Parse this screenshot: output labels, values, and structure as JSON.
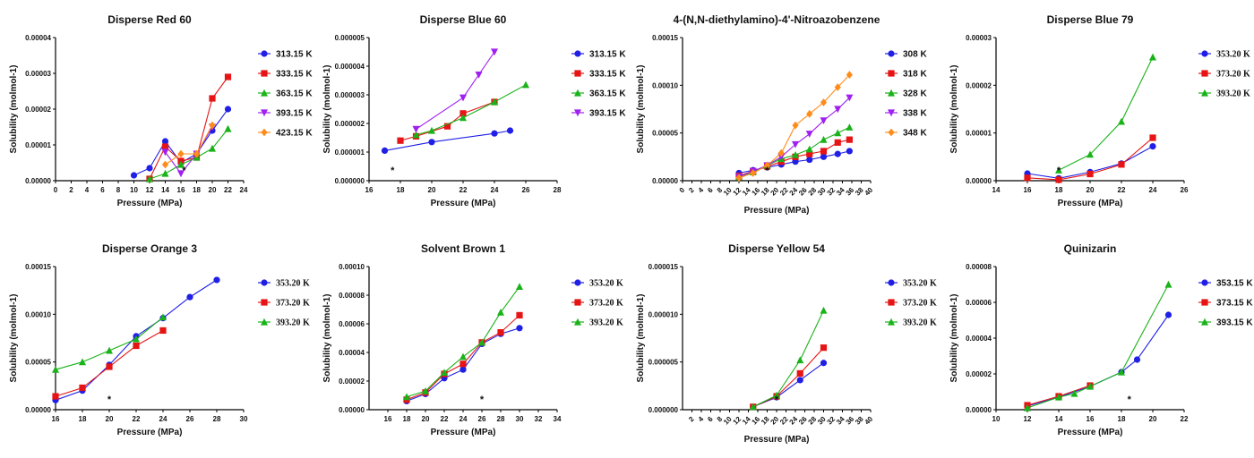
{
  "colors": {
    "blue": "#1f1fe6",
    "red": "#e61414",
    "green": "#19b219",
    "purple": "#a020f0",
    "orange": "#ff8c1a"
  },
  "chart_data": [
    {
      "type": "line",
      "title": "Disperse Red 60",
      "xlabel": "Pressure (MPa)",
      "ylabel": "Solubility (molmol-1)",
      "xlim": [
        0,
        24
      ],
      "ylim": [
        0,
        4e-05
      ],
      "xticks": [
        "0",
        "2",
        "4",
        "6",
        "8",
        "10",
        "12",
        "14",
        "16",
        "18",
        "20",
        "22",
        "24"
      ],
      "yticks": [
        "0.00000",
        "0.00001",
        "0.00002",
        "0.00003",
        "0.00004"
      ],
      "annotation": "*",
      "annotation_x": 16.4,
      "legend_position": "right",
      "series": [
        {
          "name": "313.15 K",
          "color": "blue",
          "marker": "circle",
          "x": [
            10,
            12,
            14,
            16,
            18,
            20,
            22
          ],
          "y": [
            1.5e-06,
            3.5e-06,
            1.1e-05,
            5e-06,
            7.5e-06,
            1.4e-05,
            2e-05
          ]
        },
        {
          "name": "333.15 K",
          "color": "red",
          "marker": "square",
          "x": [
            12,
            14,
            16,
            18,
            20,
            22
          ],
          "y": [
            5e-07,
            9.5e-06,
            5.5e-06,
            6.5e-06,
            2.3e-05,
            2.9e-05
          ]
        },
        {
          "name": "363.15 K",
          "color": "green",
          "marker": "triangle",
          "x": [
            12,
            14,
            16,
            18,
            20,
            22
          ],
          "y": [
            5e-07,
            2e-06,
            4.5e-06,
            6.5e-06,
            9e-06,
            1.45e-05
          ]
        },
        {
          "name": "393.15 K",
          "color": "purple",
          "marker": "triangle-down",
          "x": [
            14,
            16,
            18,
            20
          ],
          "y": [
            8e-06,
            2e-06,
            7.5e-06,
            1.5e-05
          ]
        },
        {
          "name": "423.15 K",
          "color": "orange",
          "marker": "diamond",
          "x": [
            14,
            16,
            18,
            20
          ],
          "y": [
            4.5e-06,
            7.5e-06,
            7.5e-06,
            1.55e-05
          ]
        }
      ]
    },
    {
      "type": "line",
      "title": "Disperse Blue 60",
      "xlabel": "Pressure (MPa)",
      "ylabel": "Solubility (molmol-1)",
      "xlim": [
        16,
        28
      ],
      "ylim": [
        0,
        5e-06
      ],
      "xticks": [
        "16",
        "18",
        "20",
        "22",
        "24",
        "26",
        "28"
      ],
      "yticks": [
        "0.000000",
        "0.000001",
        "0.000002",
        "0.000003",
        "0.000004",
        "0.000005"
      ],
      "annotation": "*",
      "annotation_x": 17.5,
      "legend_position": "right",
      "series": [
        {
          "name": "313.15 K",
          "color": "blue",
          "marker": "circle",
          "x": [
            17,
            20,
            24,
            25
          ],
          "y": [
            1.05e-06,
            1.35e-06,
            1.65e-06,
            1.75e-06
          ]
        },
        {
          "name": "333.15 K",
          "color": "red",
          "marker": "square",
          "x": [
            18,
            19,
            21,
            22,
            24
          ],
          "y": [
            1.4e-06,
            1.55e-06,
            1.9e-06,
            2.35e-06,
            2.75e-06
          ]
        },
        {
          "name": "363.15 K",
          "color": "green",
          "marker": "triangle",
          "x": [
            19,
            20,
            22,
            24,
            26
          ],
          "y": [
            1.6e-06,
            1.75e-06,
            2.2e-06,
            2.75e-06,
            3.35e-06
          ]
        },
        {
          "name": "393.15 K",
          "color": "purple",
          "marker": "triangle-down",
          "x": [
            19,
            22,
            23,
            24
          ],
          "y": [
            1.8e-06,
            2.9e-06,
            3.7e-06,
            4.5e-06
          ]
        }
      ]
    },
    {
      "type": "line",
      "title": "4-(N,N-diethylamino)-4'-Nitroazobenzene",
      "xlabel": "Pressure (MPa)",
      "ylabel": "Solubility (molmol-1)",
      "xlim": [
        0,
        40
      ],
      "ylim": [
        0,
        0.00015
      ],
      "xticks": [
        "0",
        "2",
        "4",
        "6",
        "8",
        "10",
        "12",
        "14",
        "16",
        "18",
        "20",
        "22",
        "24",
        "26",
        "28",
        "30",
        "32",
        "34",
        "36",
        "38",
        "40"
      ],
      "xtick_rotate": true,
      "yticks": [
        "0.00000",
        "0.00005",
        "0.00010",
        "0.00015"
      ],
      "annotation": "*",
      "annotation_x": 18,
      "legend_position": "right",
      "series": [
        {
          "name": "308 K",
          "color": "blue",
          "marker": "circle",
          "x": [
            12,
            15,
            18,
            21,
            24,
            27,
            30,
            33,
            35.5
          ],
          "y": [
            8e-06,
            1.1e-05,
            1.4e-05,
            1.7e-05,
            2e-05,
            2.2e-05,
            2.5e-05,
            2.8e-05,
            3.1e-05
          ]
        },
        {
          "name": "318 K",
          "color": "red",
          "marker": "square",
          "x": [
            12,
            15,
            18,
            21,
            24,
            27,
            30,
            33,
            35.5
          ],
          "y": [
            5e-06,
            1e-05,
            1.5e-05,
            2e-05,
            2.5e-05,
            2.8e-05,
            3.1e-05,
            4e-05,
            4.3e-05
          ]
        },
        {
          "name": "328 K",
          "color": "green",
          "marker": "triangle",
          "x": [
            12,
            15,
            18,
            21,
            24,
            27,
            30,
            33,
            35.5
          ],
          "y": [
            4e-06,
            9e-06,
            1.6e-05,
            2.3e-05,
            2.7e-05,
            3.3e-05,
            4.3e-05,
            5e-05,
            5.6e-05
          ]
        },
        {
          "name": "338 K",
          "color": "purple",
          "marker": "triangle-down",
          "x": [
            12,
            15,
            18,
            21,
            24,
            27,
            30,
            33,
            35.5
          ],
          "y": [
            4e-06,
            1e-05,
            1.6e-05,
            2.5e-05,
            3.8e-05,
            4.9e-05,
            6.3e-05,
            7.5e-05,
            8.7e-05
          ]
        },
        {
          "name": "348 K",
          "color": "orange",
          "marker": "diamond",
          "x": [
            12,
            15,
            18,
            21,
            24,
            27,
            30,
            33,
            35.5
          ],
          "y": [
            3e-06,
            8e-06,
            1.6e-05,
            2.9e-05,
            5.8e-05,
            7e-05,
            8.2e-05,
            9.8e-05,
            0.000111
          ]
        }
      ]
    },
    {
      "type": "line",
      "title": "Disperse Blue 79",
      "xlabel": "Pressure (MPa)",
      "ylabel": "Solubility (molmol-1)",
      "xlim": [
        14,
        26
      ],
      "ylim": [
        0,
        3e-05
      ],
      "xticks": [
        "14",
        "16",
        "18",
        "20",
        "22",
        "24",
        "26"
      ],
      "yticks": [
        "0.00000",
        "0.00001",
        "0.00002",
        "0.00003"
      ],
      "annotation": "*",
      "annotation_x": 18,
      "legend_position": "right",
      "legend_serif": true,
      "series": [
        {
          "name": "353.20 K",
          "color": "blue",
          "marker": "circle",
          "x": [
            16,
            18,
            20,
            22,
            24
          ],
          "y": [
            1.5e-06,
            5e-07,
            1.8e-06,
            3.6e-06,
            7.2e-06
          ]
        },
        {
          "name": "373.20 K",
          "color": "red",
          "marker": "square",
          "x": [
            16,
            18,
            20,
            22,
            24
          ],
          "y": [
            6e-07,
            2e-07,
            1.4e-06,
            3.4e-06,
            9e-06
          ]
        },
        {
          "name": "393.20 K",
          "color": "green",
          "marker": "triangle",
          "x": [
            18,
            20,
            22,
            24
          ],
          "y": [
            2.2e-06,
            5.5e-06,
            1.24e-05,
            2.59e-05
          ]
        }
      ]
    },
    {
      "type": "line",
      "title": "Disperse Orange 3",
      "xlabel": "Pressure (MPa)",
      "ylabel": "Solubility (molmol-1)",
      "xlim": [
        16,
        30
      ],
      "ylim": [
        0,
        0.00015
      ],
      "xticks": [
        "16",
        "18",
        "20",
        "22",
        "24",
        "26",
        "28",
        "30"
      ],
      "yticks": [
        "0.00000",
        "0.00005",
        "0.00010",
        "0.00015"
      ],
      "annotation": "*",
      "annotation_x": 20,
      "legend_position": "right",
      "legend_serif": true,
      "series": [
        {
          "name": "353.20 K",
          "color": "blue",
          "marker": "circle",
          "x": [
            16,
            18,
            20,
            22,
            24,
            26,
            28
          ],
          "y": [
            1e-05,
            2e-05,
            4.7e-05,
            7.7e-05,
            9.6e-05,
            0.000118,
            0.000136
          ]
        },
        {
          "name": "373.20 K",
          "color": "red",
          "marker": "square",
          "x": [
            16,
            18,
            20,
            22,
            24
          ],
          "y": [
            1.4e-05,
            2.3e-05,
            4.5e-05,
            6.7e-05,
            8.3e-05
          ]
        },
        {
          "name": "393.20 K",
          "color": "green",
          "marker": "triangle",
          "x": [
            16,
            18,
            20,
            22,
            24
          ],
          "y": [
            4.2e-05,
            5e-05,
            6.2e-05,
            7.4e-05,
            9.7e-05
          ]
        }
      ]
    },
    {
      "type": "line",
      "title": "Solvent Brown 1",
      "xlabel": "Pressure (MPa)",
      "ylabel": "Solubility (molmol-1)",
      "xlim": [
        14,
        34
      ],
      "ylim": [
        0,
        0.0001
      ],
      "xticks": [
        "16",
        "18",
        "20",
        "22",
        "24",
        "26",
        "28",
        "30",
        "32",
        "34"
      ],
      "yticks": [
        "0.00000",
        "0.00002",
        "0.00004",
        "0.00006",
        "0.00008",
        "0.00010"
      ],
      "annotation": "*",
      "annotation_x": 26,
      "legend_position": "right",
      "legend_serif": true,
      "series": [
        {
          "name": "353.20 K",
          "color": "blue",
          "marker": "circle",
          "x": [
            18,
            20,
            22,
            24,
            26,
            28,
            30
          ],
          "y": [
            6e-06,
            1.1e-05,
            2.2e-05,
            2.8e-05,
            4.6e-05,
            5.3e-05,
            5.7e-05
          ]
        },
        {
          "name": "373.20 K",
          "color": "red",
          "marker": "square",
          "x": [
            18,
            20,
            22,
            24,
            26,
            28,
            30
          ],
          "y": [
            7e-06,
            1.2e-05,
            2.5e-05,
            3.2e-05,
            4.7e-05,
            5.4e-05,
            6.6e-05
          ]
        },
        {
          "name": "393.20 K",
          "color": "green",
          "marker": "triangle",
          "x": [
            18,
            20,
            22,
            24,
            26,
            28,
            30
          ],
          "y": [
            9e-06,
            1.3e-05,
            2.6e-05,
            3.7e-05,
            4.7e-05,
            6.8e-05,
            8.6e-05
          ]
        }
      ]
    },
    {
      "type": "line",
      "title": "Disperse Yellow 54",
      "xlabel": "Pressure (MPa)",
      "ylabel": "Solubility (molmol-1)",
      "xlim": [
        0,
        40
      ],
      "ylim": [
        0,
        1.5e-05
      ],
      "xticks": [
        "2",
        "4",
        "6",
        "8",
        "10",
        "12",
        "14",
        "16",
        "18",
        "20",
        "22",
        "24",
        "26",
        "28",
        "30",
        "32",
        "34",
        "36",
        "38",
        "40"
      ],
      "xtick_rotate": true,
      "yticks": [
        "0.000000",
        "0.000005",
        "0.000010",
        "0.000015"
      ],
      "annotation": "*",
      "annotation_x": 20,
      "legend_position": "right",
      "legend_serif": true,
      "series": [
        {
          "name": "353.20 K",
          "color": "blue",
          "marker": "circle",
          "x": [
            15,
            20,
            25,
            30
          ],
          "y": [
            3e-07,
            1.3e-06,
            3.1e-06,
            4.9e-06
          ]
        },
        {
          "name": "373.20 K",
          "color": "red",
          "marker": "square",
          "x": [
            15,
            20,
            25,
            30
          ],
          "y": [
            3e-07,
            1.4e-06,
            3.8e-06,
            6.5e-06
          ]
        },
        {
          "name": "393.20 K",
          "color": "green",
          "marker": "triangle",
          "x": [
            15,
            20,
            25,
            30
          ],
          "y": [
            3e-07,
            1.5e-06,
            5.2e-06,
            1.04e-05
          ]
        }
      ]
    },
    {
      "type": "line",
      "title": "Quinizarin",
      "xlabel": "Pressure (MPa)",
      "ylabel": "Solubility (molmol-1)",
      "xlim": [
        10,
        22
      ],
      "ylim": [
        0,
        8e-05
      ],
      "xticks": [
        "10",
        "12",
        "14",
        "16",
        "18",
        "20",
        "22"
      ],
      "yticks": [
        "0.00000",
        "0.00002",
        "0.00004",
        "0.00006",
        "0.00008"
      ],
      "annotation": "*",
      "annotation_x": 18.5,
      "legend_position": "right",
      "series": [
        {
          "name": "353.15 K",
          "color": "blue",
          "marker": "circle",
          "x": [
            12,
            14,
            16,
            18,
            19,
            21
          ],
          "y": [
            2e-06,
            7e-06,
            1.3e-05,
            2.1e-05,
            2.8e-05,
            5.3e-05
          ]
        },
        {
          "name": "373.15 K",
          "color": "red",
          "marker": "square",
          "x": [
            12,
            14,
            16
          ],
          "y": [
            2.5e-06,
            7.5e-06,
            1.35e-05
          ]
        },
        {
          "name": "393.15 K",
          "color": "green",
          "marker": "triangle",
          "x": [
            12,
            14,
            15,
            16,
            18,
            21
          ],
          "y": [
            1e-06,
            7e-06,
            9e-06,
            1.3e-05,
            2.1e-05,
            7e-05
          ]
        }
      ]
    }
  ]
}
